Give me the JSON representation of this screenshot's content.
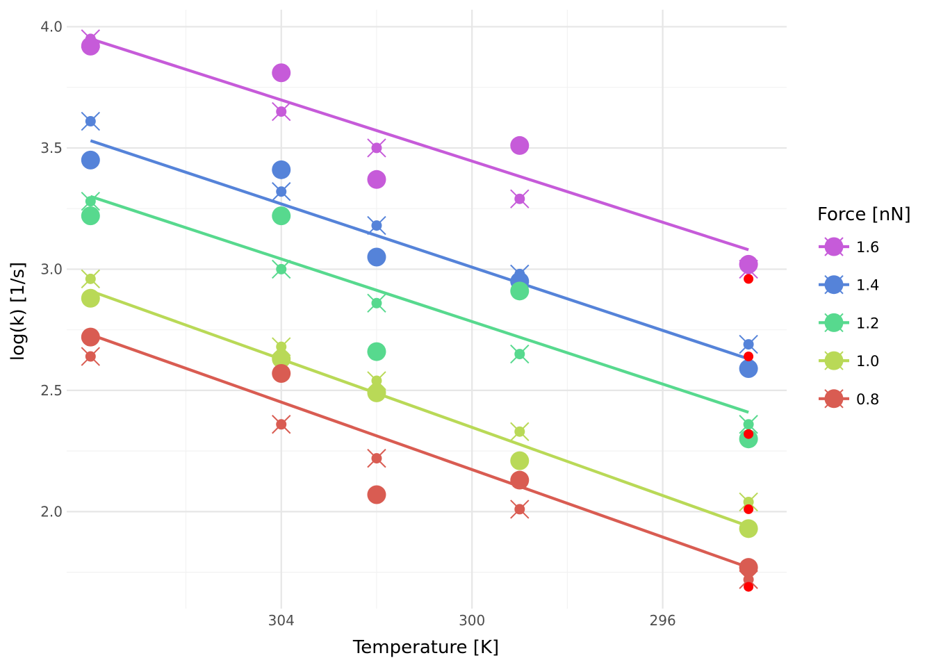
{
  "chart_data": {
    "type": "scatter",
    "title": "",
    "xlabel": "Temperature [K]",
    "ylabel": "log(k) [1/s]",
    "x_reversed": true,
    "xlim": [
      308.5,
      293.4
    ],
    "ylim": [
      1.6,
      4.07
    ],
    "x_ticks": [
      304,
      300,
      296
    ],
    "y_ticks": [
      2.0,
      2.5,
      3.0,
      3.5,
      4.0
    ],
    "x_tick_labels": [
      "304",
      "300",
      "296"
    ],
    "y_tick_labels": [
      "2.0",
      "2.5",
      "3.0",
      "3.5",
      "4.0"
    ],
    "grid": true,
    "legend": {
      "title": "Force [nN]",
      "position": "right"
    },
    "temperatures": [
      308,
      304,
      302,
      299,
      294.2
    ],
    "series": [
      {
        "name": "1.6",
        "color": "#c65bd9",
        "measured": [
          3.92,
          3.81,
          3.37,
          3.51,
          3.02
        ],
        "predicted": [
          3.95,
          3.65,
          3.5,
          3.29,
          3.0
        ],
        "fit": [
          3.95,
          3.08
        ]
      },
      {
        "name": "1.4",
        "color": "#5583d9",
        "measured": [
          3.45,
          3.41,
          3.05,
          2.95,
          2.59
        ],
        "predicted": [
          3.61,
          3.32,
          3.18,
          2.98,
          2.69
        ],
        "fit": [
          3.53,
          2.63
        ]
      },
      {
        "name": "1.2",
        "color": "#57d98e",
        "measured": [
          3.22,
          3.22,
          2.66,
          2.91,
          2.3
        ],
        "predicted": [
          3.28,
          3.0,
          2.86,
          2.65,
          2.36
        ],
        "fit": [
          3.3,
          2.41
        ]
      },
      {
        "name": "1.0",
        "color": "#b9d957",
        "measured": [
          2.88,
          2.63,
          2.49,
          2.21,
          1.93
        ],
        "predicted": [
          2.96,
          2.68,
          2.54,
          2.33,
          2.04
        ],
        "fit": [
          2.91,
          1.94
        ]
      },
      {
        "name": "0.8",
        "color": "#d95c52",
        "measured": [
          2.72,
          2.57,
          2.07,
          2.13,
          1.77
        ],
        "predicted": [
          2.64,
          2.36,
          2.22,
          2.01,
          1.72
        ],
        "fit": [
          2.73,
          1.77
        ]
      }
    ],
    "highlight_points": {
      "color": "#ff0000",
      "x": 294.2,
      "y": [
        2.96,
        2.64,
        2.32,
        2.01,
        1.69
      ]
    }
  }
}
